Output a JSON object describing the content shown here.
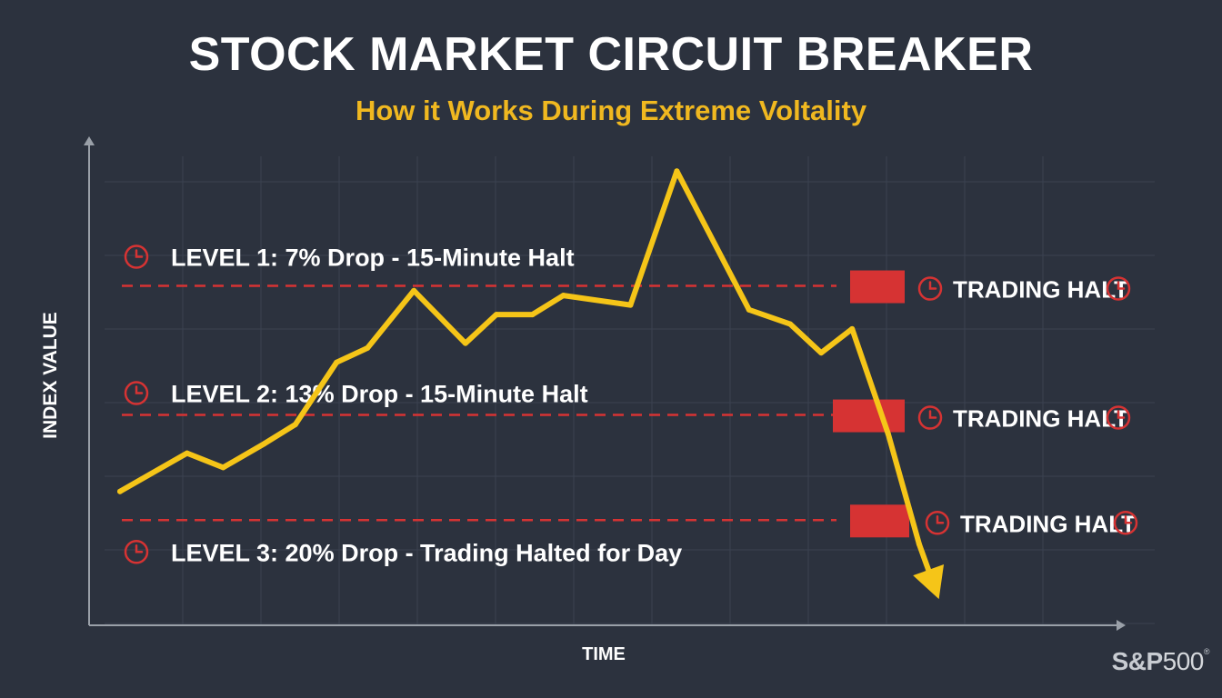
{
  "header": {
    "title": "STOCK MARKET CIRCUIT BREAKER",
    "subtitle": "How it Works During Extreme Voltality"
  },
  "logo": {
    "brand": "S&P",
    "number": "500"
  },
  "colors": {
    "background": "#2c323e",
    "line": "#f5c518",
    "threshold": "#d63333",
    "text": "#ffffff",
    "subtitle": "#f0b820",
    "grid": "#3b4250"
  },
  "chart_data": {
    "type": "line",
    "xlabel": "TIME",
    "ylabel": "INDEX VALUE",
    "xlim": [
      0,
      100
    ],
    "ylim": [
      0,
      100
    ],
    "grid": true,
    "series": [
      {
        "values": [
          [
            3,
            28
          ],
          [
            9.5,
            36
          ],
          [
            13,
            33
          ],
          [
            17,
            38
          ],
          [
            20,
            42
          ],
          [
            24,
            55
          ],
          [
            27,
            58
          ],
          [
            31.5,
            70
          ],
          [
            36.5,
            59
          ],
          [
            39.5,
            65
          ],
          [
            43,
            65
          ],
          [
            46,
            69
          ],
          [
            52.5,
            67
          ],
          [
            57,
            95
          ],
          [
            64,
            66
          ],
          [
            68,
            63
          ],
          [
            71,
            57
          ],
          [
            74,
            62
          ],
          [
            77.5,
            40
          ],
          [
            80.5,
            17
          ],
          [
            82,
            8
          ]
        ]
      }
    ],
    "thresholds": [
      {
        "y": 71,
        "label": "LEVEL 1: 7% Drop - 15-Minute Halt",
        "halt": "TRADING HALT"
      },
      {
        "y": 44,
        "label": "LEVEL 2: 13% Drop - 15-Minute Halt",
        "halt": "TRADING HALT"
      },
      {
        "y": 22,
        "label": "LEVEL 3: 20% Drop - Trading Halted for Day",
        "halt": "TRADING HALT"
      }
    ]
  }
}
